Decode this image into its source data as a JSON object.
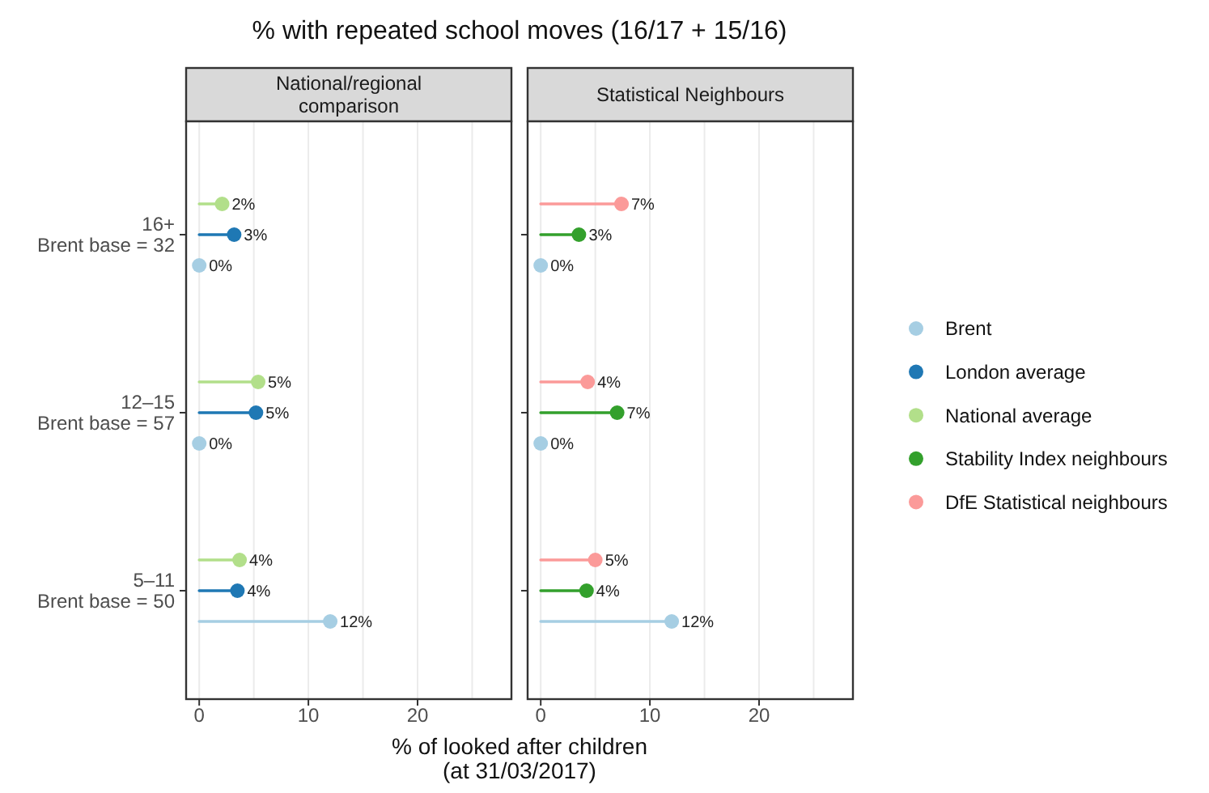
{
  "chart_data": [
    {
      "type": "lollipop",
      "orientation": "horizontal",
      "title": "% with repeated school moves (16/17 + 15/16)",
      "subtitle": "National/regional\ncomparison",
      "xlabel": "% of looked after children\n(at 31/03/2017)",
      "categories": [
        "16+\nBrent base = 32",
        "12–15\nBrent base = 57",
        "5–11\nBrent base = 50"
      ],
      "xlim": [
        -1.2,
        28.6
      ],
      "xticks": [
        0,
        {
          "value": 5,
          "label": null
        },
        10,
        {
          "value": 15,
          "label": null
        },
        20,
        {
          "value": 25,
          "label": null
        }
      ],
      "grid": "x",
      "legend": "right",
      "marker": "circle",
      "series": [
        {
          "name": "Brent",
          "color": "#a6cee3",
          "values": [
            0,
            0,
            12
          ],
          "value_labels": [
            "0%",
            "0%",
            "12%"
          ]
        },
        {
          "name": "London average",
          "color": "#1f78b4",
          "values": [
            3.2,
            5.2,
            3.5
          ],
          "value_labels": [
            "3%",
            "5%",
            "4%"
          ]
        },
        {
          "name": "National average",
          "color": "#b2df8a",
          "values": [
            2.1,
            5.4,
            3.7
          ],
          "value_labels": [
            "2%",
            "5%",
            "4%"
          ]
        }
      ]
    },
    {
      "type": "lollipop",
      "orientation": "horizontal",
      "subtitle": "Statistical Neighbours",
      "categories": [
        null,
        null,
        null
      ],
      "xlim": [
        -1.2,
        28.6
      ],
      "xticks": [
        0,
        {
          "value": 5,
          "label": null
        },
        10,
        {
          "value": 15,
          "label": null
        },
        20,
        {
          "value": 25,
          "label": null
        }
      ],
      "grid": "x",
      "legend": "right",
      "marker": "circle",
      "tick_labels": "x",
      "series": [
        {
          "name": "Brent",
          "color": "#a6cee3",
          "values": [
            0,
            0,
            12
          ],
          "value_labels": [
            "0%",
            "0%",
            "12%"
          ]
        },
        {
          "name": "Stability Index neighbours",
          "color": "#33a02c",
          "values": [
            3.5,
            7.0,
            4.2
          ],
          "value_labels": [
            "3%",
            "7%",
            "4%"
          ]
        },
        {
          "name": "DfE Statistical neighbours",
          "color": "#fb9a99",
          "values": [
            7.4,
            4.3,
            5.0
          ],
          "value_labels": [
            "7%",
            "4%",
            "5%"
          ]
        }
      ]
    }
  ]
}
